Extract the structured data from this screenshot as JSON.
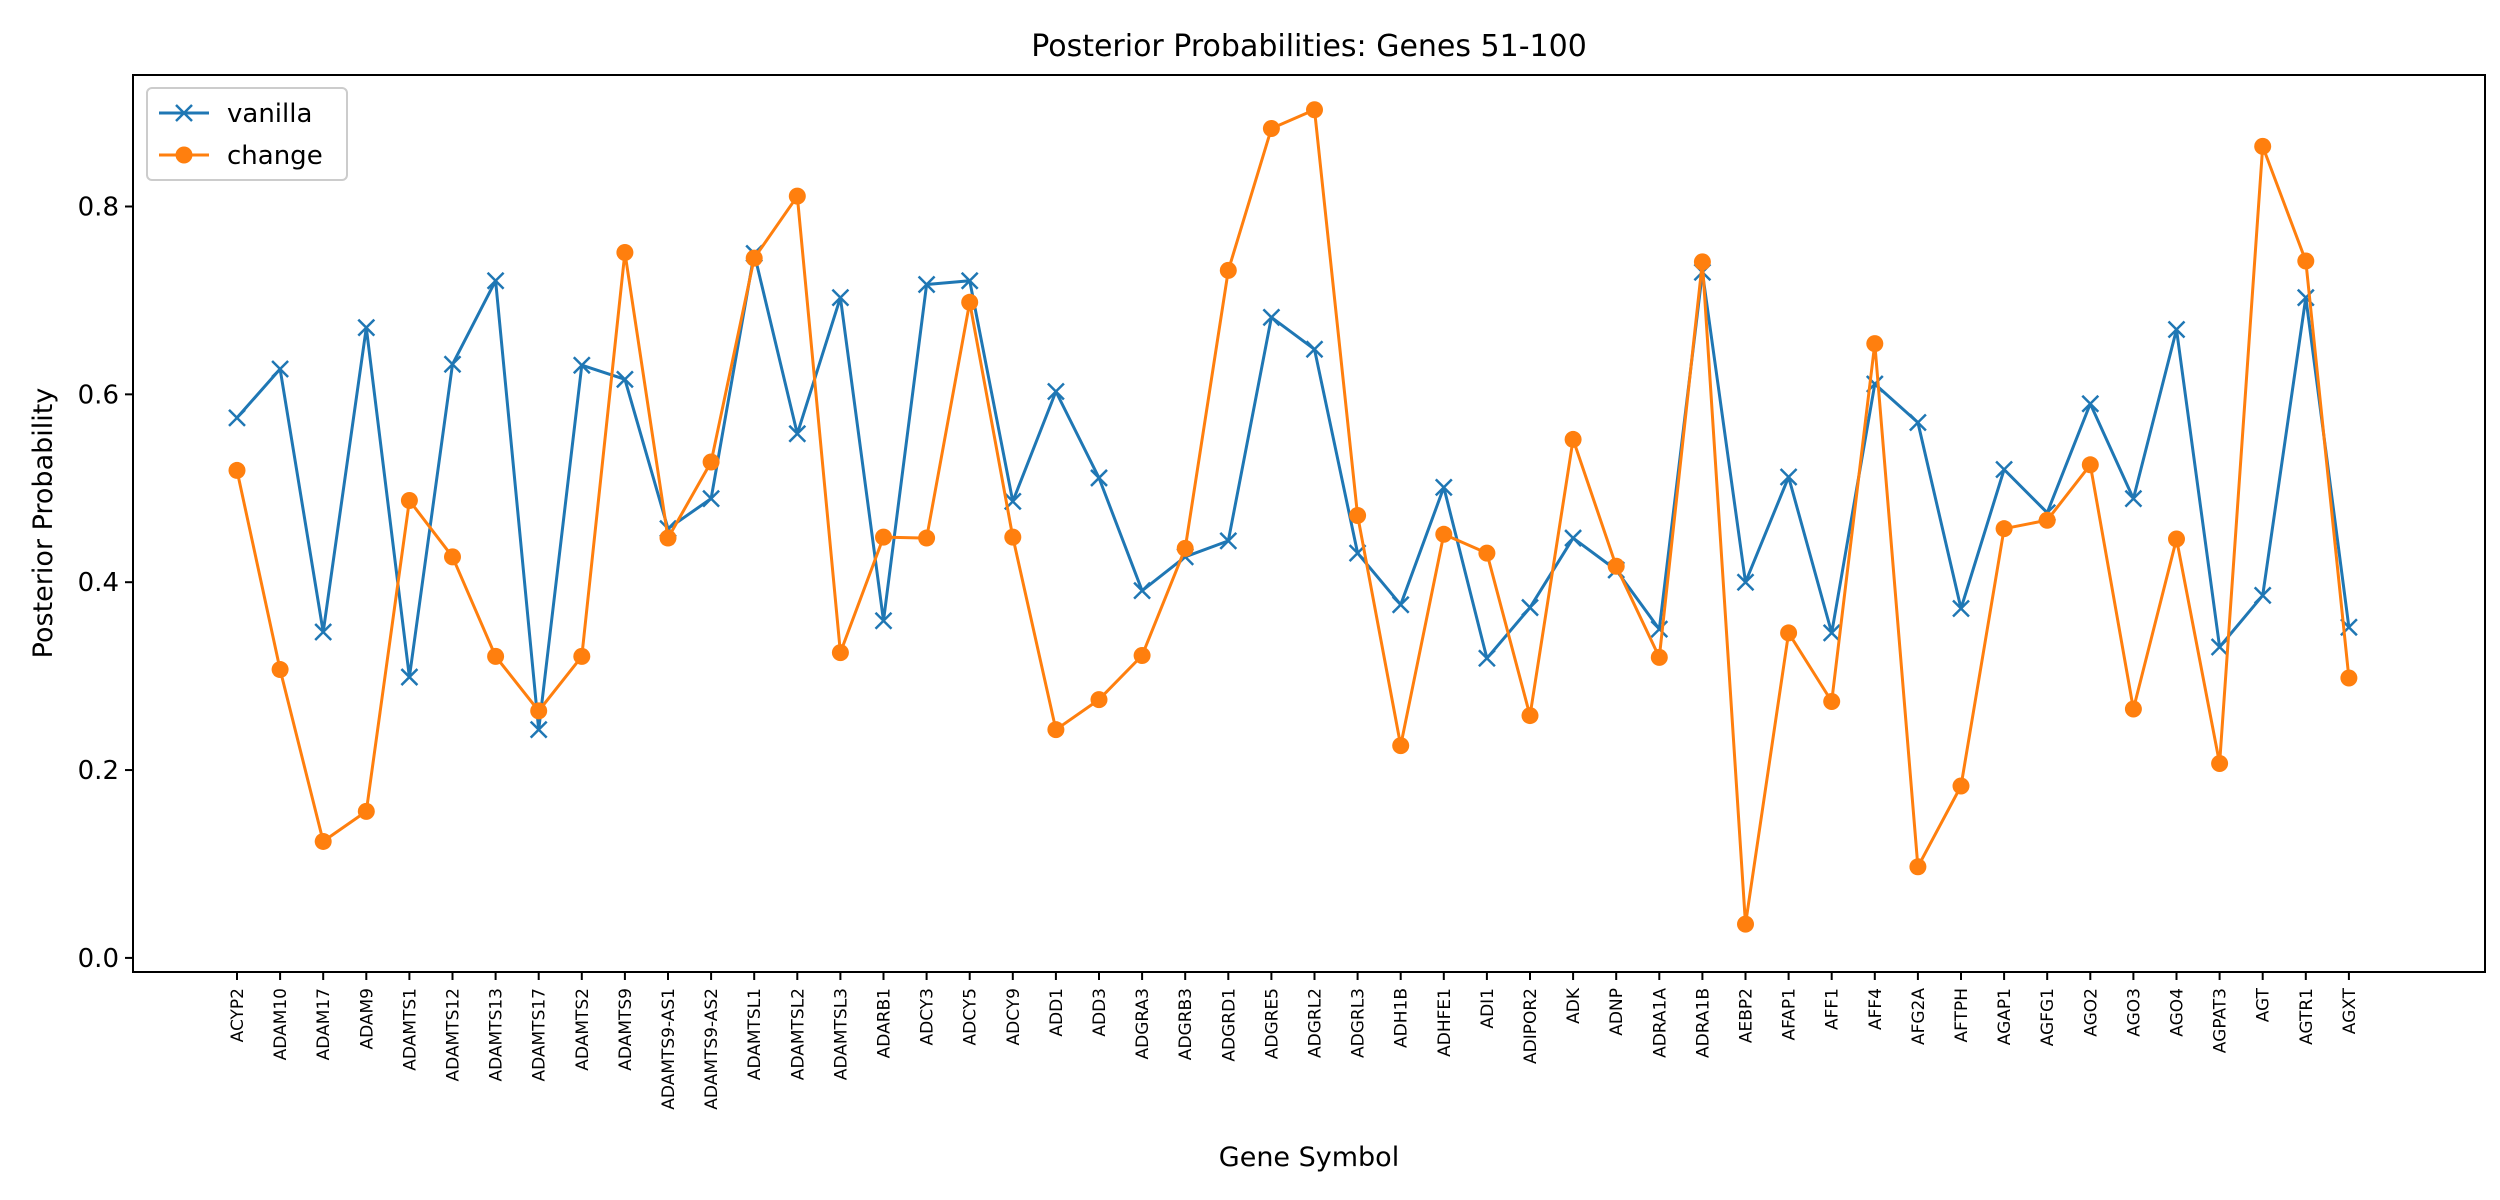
{
  "chart_data": {
    "type": "line",
    "title": "Posterior Probabilities: Genes 51-100",
    "xlabel": "Gene Symbol",
    "ylabel": "Posterior Probability",
    "ylim": [
      -0.015,
      0.94
    ],
    "yticks": [
      0.0,
      0.2,
      0.4,
      0.6,
      0.8
    ],
    "ytick_labels": [
      "0.0",
      "0.2",
      "0.4",
      "0.6",
      "0.8"
    ],
    "grid": false,
    "legend_position": "top-left",
    "categories": [
      "ACYP2",
      "ADAM10",
      "ADAM17",
      "ADAM9",
      "ADAMTS1",
      "ADAMTS12",
      "ADAMTS13",
      "ADAMTS17",
      "ADAMTS2",
      "ADAMTS9",
      "ADAMTS9-AS1",
      "ADAMTS9-AS2",
      "ADAMTSL1",
      "ADAMTSL2",
      "ADAMTSL3",
      "ADARB1",
      "ADCY3",
      "ADCY5",
      "ADCY9",
      "ADD1",
      "ADD3",
      "ADGRA3",
      "ADGRB3",
      "ADGRD1",
      "ADGRE5",
      "ADGRL2",
      "ADGRL3",
      "ADH1B",
      "ADHFE1",
      "ADI1",
      "ADIPOR2",
      "ADK",
      "ADNP",
      "ADRA1A",
      "ADRA1B",
      "AEBP2",
      "AFAP1",
      "AFF1",
      "AFF4",
      "AFG2A",
      "AFTPH",
      "AGAP1",
      "AGFG1",
      "AGO2",
      "AGO3",
      "AGO4",
      "AGPAT3",
      "AGT",
      "AGTR1",
      "AGXT"
    ],
    "series": [
      {
        "name": "vanilla",
        "color": "#1f77b4",
        "marker": "x",
        "values": [
          0.575,
          0.627,
          0.347,
          0.671,
          0.299,
          0.632,
          0.721,
          0.243,
          0.631,
          0.616,
          0.457,
          0.489,
          0.75,
          0.558,
          0.703,
          0.359,
          0.717,
          0.721,
          0.486,
          0.603,
          0.511,
          0.391,
          0.427,
          0.444,
          0.682,
          0.648,
          0.431,
          0.376,
          0.501,
          0.319,
          0.373,
          0.447,
          0.413,
          0.35,
          0.73,
          0.4,
          0.512,
          0.346,
          0.611,
          0.57,
          0.372,
          0.52,
          0.474,
          0.59,
          0.489,
          0.669,
          0.331,
          0.386,
          0.703,
          0.352
        ]
      },
      {
        "name": "change",
        "color": "#ff7f0e",
        "marker": "o",
        "values": [
          0.519,
          0.307,
          0.124,
          0.156,
          0.487,
          0.427,
          0.321,
          0.263,
          0.321,
          0.751,
          0.447,
          0.528,
          0.745,
          0.811,
          0.325,
          0.448,
          0.447,
          0.698,
          0.448,
          0.243,
          0.275,
          0.322,
          0.436,
          0.732,
          0.883,
          0.903,
          0.471,
          0.226,
          0.451,
          0.431,
          0.258,
          0.552,
          0.417,
          0.32,
          0.741,
          0.036,
          0.346,
          0.273,
          0.654,
          0.097,
          0.183,
          0.457,
          0.466,
          0.525,
          0.265,
          0.446,
          0.207,
          0.864,
          0.742,
          0.298
        ]
      }
    ]
  }
}
